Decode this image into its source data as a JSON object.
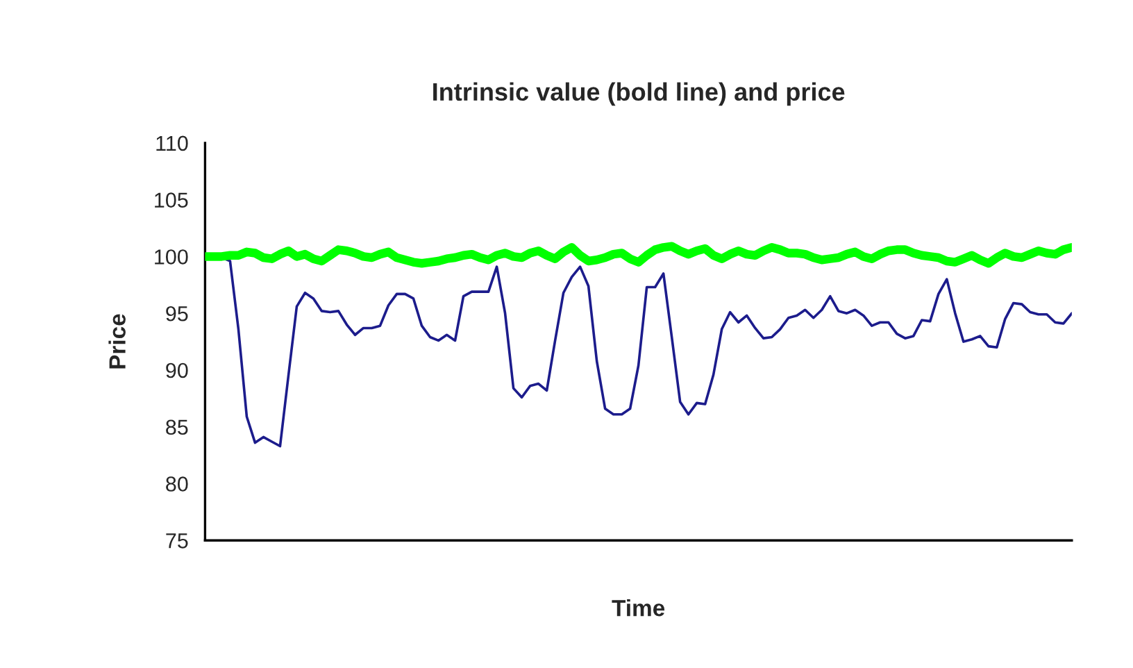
{
  "chart_data": {
    "type": "line",
    "title": "Intrinsic value (bold line) and price",
    "xlabel": "Time",
    "ylabel": "Price",
    "categories": [
      null,
      null,
      null,
      null,
      null,
      null,
      null,
      null,
      null,
      null,
      null,
      null,
      null,
      null,
      null,
      null,
      null,
      null,
      null,
      null,
      null,
      null,
      null,
      null,
      null,
      null,
      null,
      null,
      null,
      null,
      null,
      null,
      null,
      null,
      null,
      null,
      null,
      null,
      null,
      null,
      null,
      null,
      null,
      null,
      null,
      null,
      null,
      null,
      null,
      null,
      null,
      null,
      null,
      null,
      null,
      null,
      null,
      null,
      null,
      null,
      null,
      null,
      null,
      null,
      null,
      null,
      null,
      null,
      null,
      null,
      null,
      null,
      null,
      null,
      null,
      null,
      null,
      null,
      null,
      null,
      null,
      null,
      null,
      null,
      null,
      null,
      null,
      null,
      null,
      null,
      null,
      null,
      null,
      null,
      null,
      null,
      null,
      null,
      null,
      null,
      null,
      null,
      null,
      null,
      null
    ],
    "ylim": [
      75,
      110
    ],
    "yticks": [
      75,
      80,
      85,
      90,
      95,
      100,
      105,
      110
    ],
    "line_style": "solid",
    "series": [
      {
        "color": "#00ff00",
        "values": [
          100.0,
          100.0,
          100.0,
          100.1,
          100.1,
          100.4,
          100.3,
          99.9,
          99.8,
          100.2,
          100.5,
          100.0,
          100.2,
          99.8,
          99.6,
          100.1,
          100.6,
          100.5,
          100.3,
          100.0,
          99.9,
          100.2,
          100.4,
          99.9,
          99.7,
          99.5,
          99.4,
          99.5,
          99.6,
          99.8,
          99.9,
          100.1,
          100.2,
          99.9,
          99.7,
          100.1,
          100.3,
          100.0,
          99.9,
          100.3,
          100.5,
          100.1,
          99.8,
          100.4,
          100.8,
          100.1,
          99.6,
          99.7,
          99.9,
          100.2,
          100.3,
          99.8,
          99.5,
          100.1,
          100.6,
          100.8,
          100.9,
          100.5,
          100.2,
          100.5,
          100.7,
          100.1,
          99.8,
          100.2,
          100.5,
          100.2,
          100.1,
          100.5,
          100.8,
          100.6,
          100.3,
          100.3,
          100.2,
          99.9,
          99.7,
          99.8,
          99.9,
          100.2,
          100.4,
          100.0,
          99.8,
          100.2,
          100.5,
          100.6,
          100.6,
          100.3,
          100.1,
          100.0,
          99.9,
          99.6,
          99.5,
          99.8,
          100.1,
          99.7,
          99.4,
          99.9,
          100.3,
          100.0,
          99.9,
          100.2,
          100.5,
          100.3,
          100.2,
          100.6,
          100.8
        ]
      },
      {
        "color": "#1c1c8c",
        "values": [
          null,
          null,
          99.9,
          99.6,
          93.6,
          85.9,
          83.6,
          84.1,
          83.7,
          83.3,
          89.5,
          95.6,
          96.8,
          96.3,
          95.2,
          95.1,
          95.2,
          94.0,
          93.1,
          93.7,
          93.7,
          93.9,
          95.7,
          96.7,
          96.7,
          96.3,
          93.9,
          92.9,
          92.6,
          93.1,
          92.6,
          96.5,
          96.9,
          96.9,
          96.9,
          99.1,
          95.0,
          88.4,
          87.6,
          88.6,
          88.8,
          88.2,
          92.6,
          96.8,
          98.2,
          99.1,
          97.4,
          90.8,
          86.6,
          86.1,
          86.1,
          86.6,
          90.4,
          97.3,
          97.3,
          98.5,
          92.9,
          87.2,
          86.1,
          87.1,
          87.0,
          89.6,
          93.6,
          95.1,
          94.2,
          94.8,
          93.7,
          92.8,
          92.9,
          93.6,
          94.6,
          94.8,
          95.3,
          94.6,
          95.3,
          96.5,
          95.2,
          95.0,
          95.3,
          94.8,
          93.9,
          94.2,
          94.2,
          93.2,
          92.8,
          93.0,
          94.4,
          94.3,
          96.7,
          98.0,
          95.0,
          92.5,
          92.7,
          93.0,
          92.1,
          92.0,
          94.5,
          95.9,
          95.8,
          95.1,
          94.9,
          94.9,
          94.2,
          94.1,
          95.0
        ]
      }
    ]
  }
}
